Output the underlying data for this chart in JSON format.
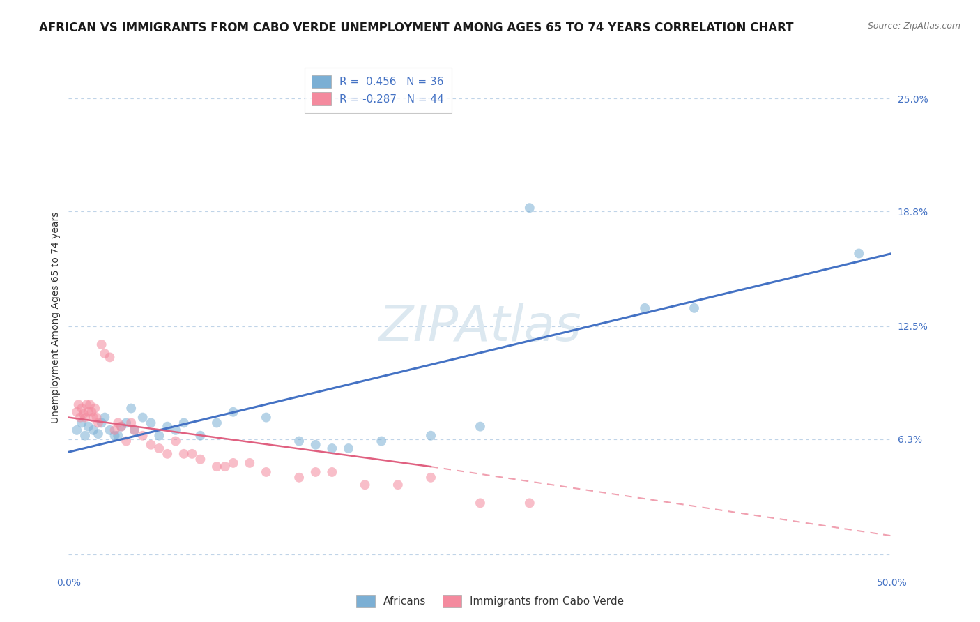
{
  "title": "AFRICAN VS IMMIGRANTS FROM CABO VERDE UNEMPLOYMENT AMONG AGES 65 TO 74 YEARS CORRELATION CHART",
  "source": "Source: ZipAtlas.com",
  "ylabel": "Unemployment Among Ages 65 to 74 years",
  "xlim": [
    0.0,
    0.5
  ],
  "ylim": [
    -0.01,
    0.27
  ],
  "yticks": [
    0.0,
    0.063,
    0.125,
    0.188,
    0.25
  ],
  "ytick_labels": [
    "",
    "6.3%",
    "12.5%",
    "18.8%",
    "25.0%"
  ],
  "xticks": [
    0.0,
    0.5
  ],
  "xtick_labels": [
    "0.0%",
    "50.0%"
  ],
  "watermark": "ZIPAtlas",
  "legend_entries": [
    {
      "label": "R =  0.456   N = 36",
      "color": "#a8c4e0"
    },
    {
      "label": "R = -0.287   N = 44",
      "color": "#f4b8c1"
    }
  ],
  "africans_scatter": [
    [
      0.005,
      0.068
    ],
    [
      0.008,
      0.072
    ],
    [
      0.01,
      0.065
    ],
    [
      0.012,
      0.07
    ],
    [
      0.015,
      0.068
    ],
    [
      0.018,
      0.066
    ],
    [
      0.02,
      0.072
    ],
    [
      0.022,
      0.075
    ],
    [
      0.025,
      0.068
    ],
    [
      0.028,
      0.065
    ],
    [
      0.03,
      0.065
    ],
    [
      0.032,
      0.07
    ],
    [
      0.035,
      0.072
    ],
    [
      0.038,
      0.08
    ],
    [
      0.04,
      0.068
    ],
    [
      0.045,
      0.075
    ],
    [
      0.05,
      0.072
    ],
    [
      0.055,
      0.065
    ],
    [
      0.06,
      0.07
    ],
    [
      0.065,
      0.068
    ],
    [
      0.07,
      0.072
    ],
    [
      0.08,
      0.065
    ],
    [
      0.09,
      0.072
    ],
    [
      0.1,
      0.078
    ],
    [
      0.12,
      0.075
    ],
    [
      0.14,
      0.062
    ],
    [
      0.15,
      0.06
    ],
    [
      0.16,
      0.058
    ],
    [
      0.17,
      0.058
    ],
    [
      0.19,
      0.062
    ],
    [
      0.22,
      0.065
    ],
    [
      0.25,
      0.07
    ],
    [
      0.28,
      0.19
    ],
    [
      0.35,
      0.135
    ],
    [
      0.38,
      0.135
    ],
    [
      0.48,
      0.165
    ]
  ],
  "cabo_verde_scatter": [
    [
      0.005,
      0.078
    ],
    [
      0.006,
      0.082
    ],
    [
      0.007,
      0.075
    ],
    [
      0.008,
      0.08
    ],
    [
      0.009,
      0.077
    ],
    [
      0.01,
      0.075
    ],
    [
      0.011,
      0.082
    ],
    [
      0.012,
      0.078
    ],
    [
      0.013,
      0.082
    ],
    [
      0.014,
      0.078
    ],
    [
      0.015,
      0.075
    ],
    [
      0.016,
      0.08
    ],
    [
      0.017,
      0.075
    ],
    [
      0.018,
      0.072
    ],
    [
      0.02,
      0.115
    ],
    [
      0.022,
      0.11
    ],
    [
      0.025,
      0.108
    ],
    [
      0.028,
      0.068
    ],
    [
      0.03,
      0.072
    ],
    [
      0.032,
      0.07
    ],
    [
      0.035,
      0.062
    ],
    [
      0.038,
      0.072
    ],
    [
      0.04,
      0.068
    ],
    [
      0.045,
      0.065
    ],
    [
      0.05,
      0.06
    ],
    [
      0.055,
      0.058
    ],
    [
      0.06,
      0.055
    ],
    [
      0.065,
      0.062
    ],
    [
      0.07,
      0.055
    ],
    [
      0.075,
      0.055
    ],
    [
      0.08,
      0.052
    ],
    [
      0.09,
      0.048
    ],
    [
      0.095,
      0.048
    ],
    [
      0.1,
      0.05
    ],
    [
      0.11,
      0.05
    ],
    [
      0.12,
      0.045
    ],
    [
      0.14,
      0.042
    ],
    [
      0.15,
      0.045
    ],
    [
      0.16,
      0.045
    ],
    [
      0.18,
      0.038
    ],
    [
      0.2,
      0.038
    ],
    [
      0.22,
      0.042
    ],
    [
      0.25,
      0.028
    ],
    [
      0.28,
      0.028
    ]
  ],
  "africans_line": {
    "x": [
      0.0,
      0.5
    ],
    "y": [
      0.056,
      0.165
    ]
  },
  "cabo_verde_line_solid": {
    "x": [
      0.0,
      0.22
    ],
    "y": [
      0.075,
      0.048
    ]
  },
  "cabo_verde_line_dashed": {
    "x": [
      0.22,
      0.5
    ],
    "y": [
      0.048,
      0.01
    ]
  },
  "scatter_color_africans": "#7bafd4",
  "scatter_alpha_africans": 0.55,
  "scatter_color_cabo_verde": "#f48a9e",
  "scatter_alpha_cabo_verde": 0.55,
  "line_color_africans": "#4472c4",
  "line_color_cabo_verde_solid": "#e06080",
  "line_color_cabo_verde_dashed": "#f0a0b0",
  "background_color": "#ffffff",
  "grid_color": "#c0d4e8",
  "title_fontsize": 12,
  "axis_label_fontsize": 10,
  "tick_fontsize": 10,
  "watermark_color": "#dce8f0",
  "legend_fontsize": 11,
  "scatter_size": 100
}
